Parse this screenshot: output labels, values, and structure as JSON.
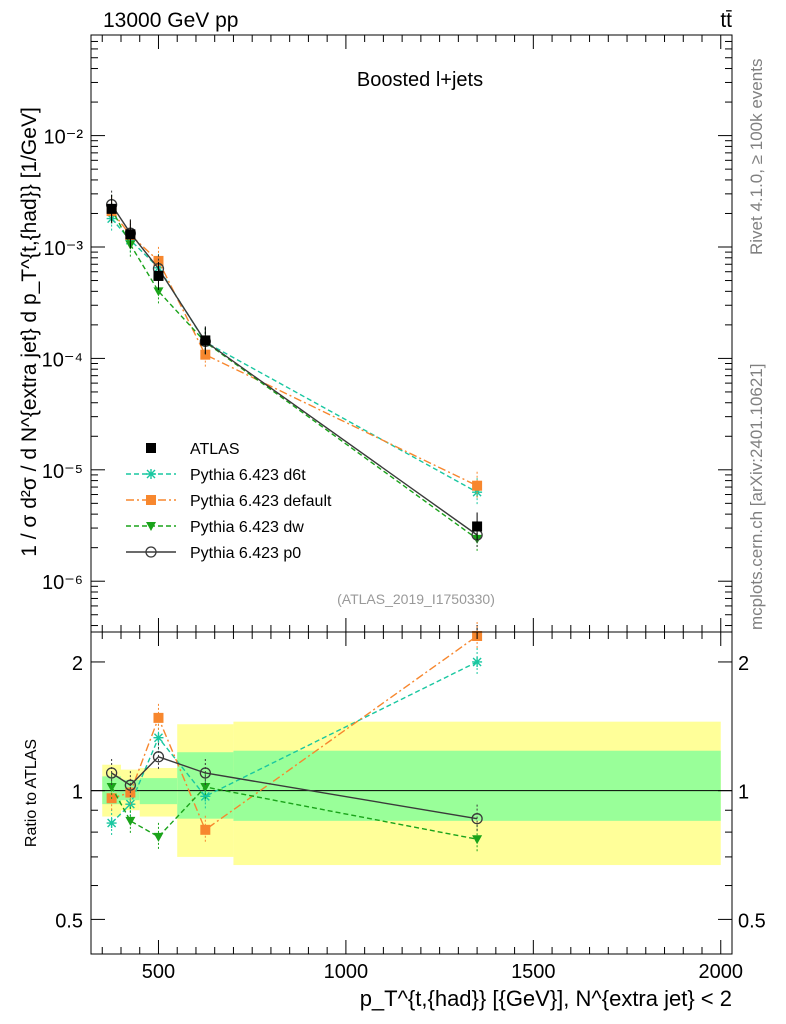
{
  "header": {
    "energy": "13000 GeV pp",
    "process": "tt̄",
    "side_rivet": "Rivet 4.1.0, ≥ 100k events",
    "side_mcplots": "mcplots.cern.ch [arXiv:2401.10621]",
    "analysis_id": "(ATLAS_2019_I1750330)"
  },
  "colors": {
    "atlas": "#000000",
    "d6t": "#19c7a0",
    "default": "#f7872e",
    "dw": "#1aa31a",
    "p0": "#3a3a3a",
    "band_green": "#99ff99",
    "band_yellow": "#ffff99"
  },
  "chart_data": [
    {
      "panel": "main",
      "type": "line",
      "title": "Boosted l+jets",
      "ylabel": "1 / σ d²σ / d N^{extra jet} d p_T^{t,{had}} [1/GeV]",
      "yscale": "log",
      "xlim": [
        320,
        2030
      ],
      "ylim": [
        3.5e-07,
        0.08
      ],
      "yticks": [
        {
          "value": 1e-06,
          "label": "10⁻⁶"
        },
        {
          "value": 1e-05,
          "label": "10⁻⁵"
        },
        {
          "value": 0.0001,
          "label": "10⁻⁴"
        },
        {
          "value": 0.001,
          "label": "10⁻³"
        },
        {
          "value": 0.01,
          "label": "10⁻²"
        }
      ],
      "legend_position": "lower-left",
      "series": [
        {
          "key": "atlas",
          "name": "ATLAS",
          "style": "data",
          "marker": "square",
          "x": [
            375,
            425,
            500,
            625,
            1350
          ],
          "y": [
            0.0022,
            0.0013,
            0.00055,
            0.000145,
            3.1e-06
          ]
        },
        {
          "key": "d6t",
          "name": "Pythia 6.423 d6t",
          "style": "dash",
          "marker": "star",
          "x": [
            375,
            425,
            500,
            625,
            1350
          ],
          "y": [
            0.0018,
            0.00115,
            0.00065,
            0.00014,
            6.3e-06
          ]
        },
        {
          "key": "default",
          "name": "Pythia 6.423 default",
          "style": "dashdot",
          "marker": "square",
          "x": [
            375,
            425,
            500,
            625,
            1350
          ],
          "y": [
            0.0021,
            0.00128,
            0.00075,
            0.000108,
            7.2e-06
          ]
        },
        {
          "key": "dw",
          "name": "Pythia 6.423 dw",
          "style": "dash",
          "marker": "triangle-down",
          "x": [
            375,
            425,
            500,
            625,
            1350
          ],
          "y": [
            0.0022,
            0.00105,
            0.0004,
            0.00014,
            2.4e-06
          ]
        },
        {
          "key": "p0",
          "name": "Pythia 6.423 p0",
          "style": "solid",
          "marker": "circle-open",
          "x": [
            375,
            425,
            500,
            625,
            1350
          ],
          "y": [
            0.0024,
            0.00133,
            0.00064,
            0.000142,
            2.6e-06
          ]
        }
      ]
    },
    {
      "panel": "ratio",
      "type": "line",
      "ylabel": "Ratio to ATLAS",
      "xlabel": "p_T^{t,{had}} [{GeV}], N^{extra jet} < 2",
      "yscale": "log",
      "xlim": [
        320,
        2030
      ],
      "ylim": [
        0.415,
        2.35
      ],
      "yticks": [
        {
          "value": 0.5,
          "label": "0.5"
        },
        {
          "value": 1,
          "label": "1"
        },
        {
          "value": 2,
          "label": "2"
        }
      ],
      "xticks": [
        {
          "value": 500,
          "label": "500"
        },
        {
          "value": 1000,
          "label": "1000"
        },
        {
          "value": 1500,
          "label": "1500"
        },
        {
          "value": 2000,
          "label": "2000"
        }
      ],
      "bands": [
        {
          "x0": 350,
          "x1": 400,
          "green": [
            0.93,
            1.08
          ],
          "yellow": [
            0.87,
            1.15
          ]
        },
        {
          "x0": 400,
          "x1": 450,
          "green": [
            0.95,
            1.06
          ],
          "yellow": [
            0.9,
            1.12
          ]
        },
        {
          "x0": 450,
          "x1": 550,
          "green": [
            0.93,
            1.07
          ],
          "yellow": [
            0.87,
            1.13
          ]
        },
        {
          "x0": 550,
          "x1": 700,
          "green": [
            0.86,
            1.23
          ],
          "yellow": [
            0.7,
            1.43
          ]
        },
        {
          "x0": 700,
          "x1": 2000,
          "green": [
            0.85,
            1.24
          ],
          "yellow": [
            0.67,
            1.45
          ]
        }
      ],
      "series": [
        {
          "key": "d6t",
          "name": "Pythia 6.423 d6t",
          "style": "dash",
          "marker": "star",
          "x": [
            375,
            425,
            500,
            625,
            1350
          ],
          "y": [
            0.84,
            0.93,
            1.33,
            0.97,
            2.0
          ]
        },
        {
          "key": "default",
          "name": "Pythia 6.423 default",
          "style": "dashdot",
          "marker": "square",
          "x": [
            375,
            425,
            500,
            625,
            1350
          ],
          "y": [
            0.96,
            0.99,
            1.48,
            0.81,
            2.3
          ]
        },
        {
          "key": "dw",
          "name": "Pythia 6.423 dw",
          "style": "dash",
          "marker": "triangle-down",
          "x": [
            375,
            425,
            500,
            625,
            1350
          ],
          "y": [
            1.02,
            0.85,
            0.78,
            1.02,
            0.77
          ]
        },
        {
          "key": "p0",
          "name": "Pythia 6.423 p0",
          "style": "solid",
          "marker": "circle-open",
          "x": [
            375,
            425,
            500,
            625,
            1350
          ],
          "y": [
            1.1,
            1.03,
            1.2,
            1.1,
            0.86
          ]
        }
      ]
    }
  ]
}
